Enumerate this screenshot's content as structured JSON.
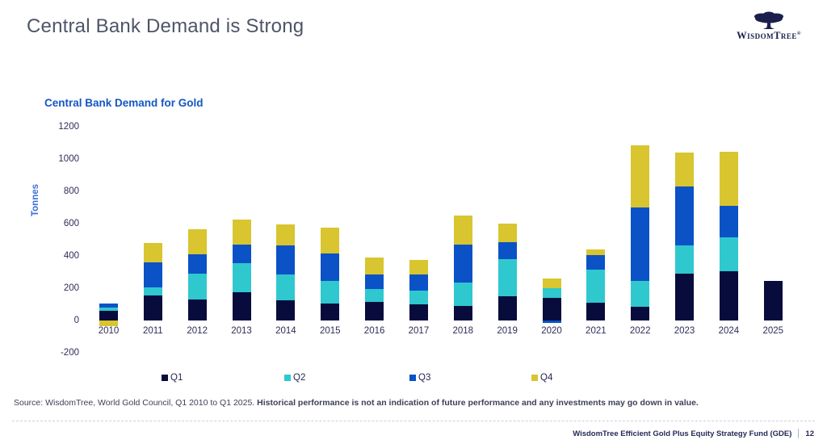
{
  "header": {
    "title": "Central Bank Demand is Strong",
    "logo": {
      "name": "WisdomTree",
      "registered": "®"
    }
  },
  "chart": {
    "title": "Central Bank Demand for Gold",
    "y_axis_label": "Tonnes"
  },
  "chart_data": {
    "type": "bar",
    "stacked": true,
    "title": "Central Bank Demand for Gold",
    "xlabel": "",
    "ylabel": "Tonnes",
    "ylim": [
      -200,
      1200
    ],
    "yticks": [
      1200,
      1000,
      800,
      600,
      400,
      200,
      0,
      -200
    ],
    "grid": false,
    "legend_position": "bottom",
    "categories": [
      "2010",
      "2011",
      "2012",
      "2013",
      "2014",
      "2015",
      "2016",
      "2017",
      "2018",
      "2019",
      "2020",
      "2021",
      "2022",
      "2023",
      "2024",
      "2025"
    ],
    "series": [
      {
        "name": "Q1",
        "color": "#080c3c",
        "values": [
          58,
          155,
          130,
          174,
          125,
          106,
          117,
          98,
          89,
          150,
          138,
          111,
          85,
          290,
          305,
          243
        ]
      },
      {
        "name": "Q2",
        "color": "#2fc8cf",
        "values": [
          20,
          50,
          163,
          184,
          163,
          138,
          78,
          89,
          146,
          233,
          60,
          207,
          160,
          175,
          210,
          0
        ]
      },
      {
        "name": "Q3",
        "color": "#0a52c6",
        "values": [
          28,
          157,
          117,
          114,
          176,
          174,
          89,
          101,
          236,
          101,
          -13,
          89,
          455,
          365,
          195,
          0
        ]
      },
      {
        "name": "Q4",
        "color": "#d8c52f",
        "values": [
          -33,
          119,
          155,
          155,
          133,
          156,
          109,
          89,
          179,
          119,
          65,
          36,
          385,
          210,
          335,
          0
        ]
      }
    ]
  },
  "source": {
    "prefix": "Source: WisdomTree, World Gold Council, Q1 2010 to Q1 2025. ",
    "disclaimer": "Historical performance is not an indication of future performance and any investments may go down in value."
  },
  "footer": {
    "fund": "WisdomTree Efficient Gold Plus Equity Strategy Fund (GDE)",
    "page": "12"
  }
}
